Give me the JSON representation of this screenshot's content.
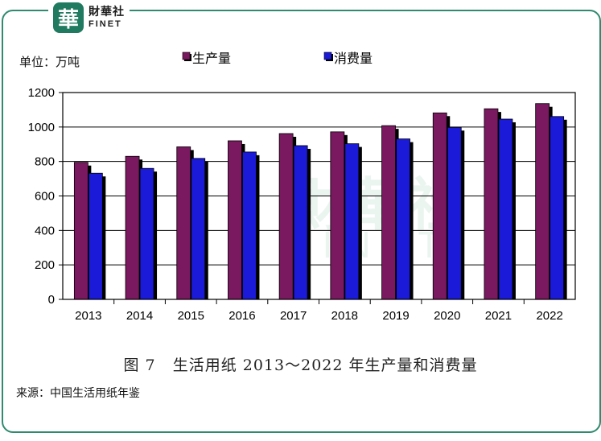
{
  "logo": {
    "mark": "華",
    "name_cn": "財華社",
    "name_en": "FINET"
  },
  "unit_label": "单位：万吨",
  "caption": "图 7   生活用纸 2013～2022 年生产量和消费量",
  "source": "来源：中国生活用纸年鉴",
  "watermark": {
    "cn": "財華社",
    "en": "FINET"
  },
  "colors": {
    "production": "#7a1860",
    "consumption": "#1a1ad8",
    "frame": "#2f8a6e"
  },
  "chart_data": {
    "type": "bar",
    "categories": [
      "2013",
      "2014",
      "2015",
      "2016",
      "2017",
      "2018",
      "2019",
      "2020",
      "2021",
      "2022"
    ],
    "series": [
      {
        "name": "生产量",
        "values": [
          795,
          830,
          885,
          920,
          962,
          972,
          1008,
          1082,
          1106,
          1136
        ]
      },
      {
        "name": "消费量",
        "values": [
          732,
          760,
          818,
          855,
          892,
          903,
          931,
          998,
          1046,
          1061
        ]
      }
    ],
    "yticks": [
      "0",
      "200",
      "400",
      "600",
      "800",
      "1000",
      "1200"
    ],
    "ylim": [
      0,
      1200
    ],
    "grid": true,
    "legend": "top"
  }
}
